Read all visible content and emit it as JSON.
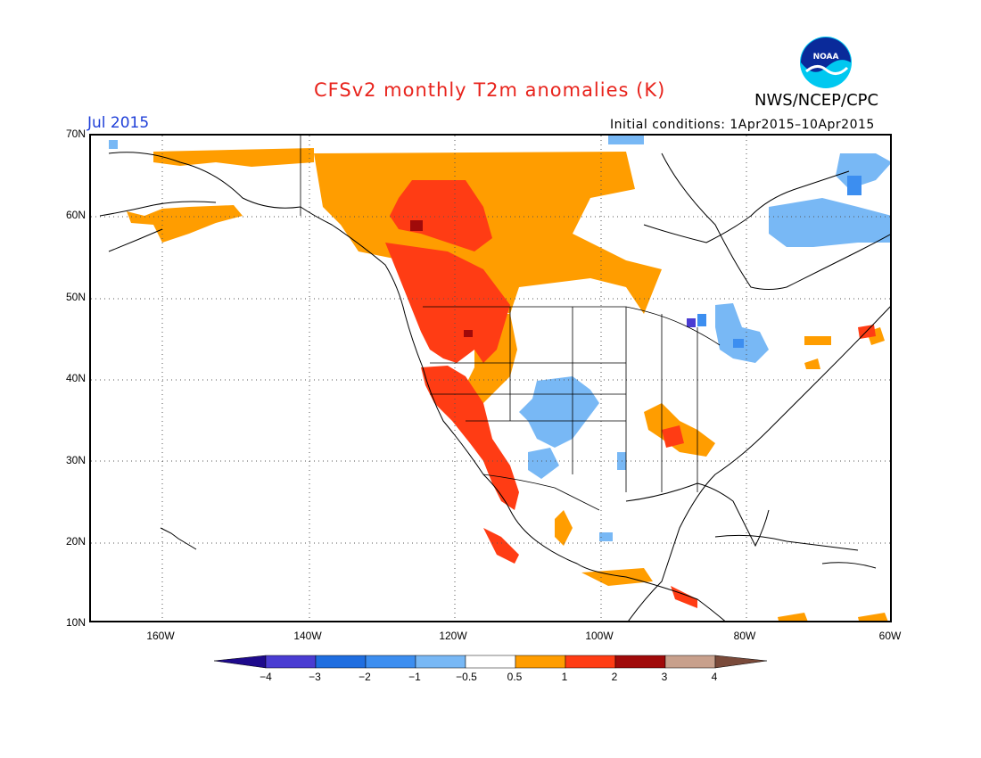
{
  "header": {
    "title": "CFSv2 monthly T2m anomalies (K)",
    "agency": "NWS/NCEP/CPC",
    "month": "Jul 2015",
    "initial_conditions": "Initial conditions: 1Apr2015–10Apr2015",
    "logo_text": "NOAA"
  },
  "axes": {
    "lat_labels": [
      "70N",
      "60N",
      "50N",
      "40N",
      "30N",
      "20N",
      "10N"
    ],
    "lon_labels": [
      "160W",
      "140W",
      "120W",
      "100W",
      "80W",
      "60W"
    ]
  },
  "colorbar": {
    "labels": [
      "−4",
      "−3",
      "−2",
      "−1",
      "−0.5",
      "0.5",
      "1",
      "2",
      "3",
      "4"
    ],
    "colors": [
      "#1e0a8c",
      "#4a3cd2",
      "#1f6ee0",
      "#3c8ef0",
      "#78b8f5",
      "#ffffff",
      "#ff9d00",
      "#ff3c14",
      "#a00a0a",
      "#c8a08c",
      "#7a4a3a"
    ]
  },
  "regions": [
    {
      "name": "northern-canada-warm",
      "level": "0.5-1"
    },
    {
      "name": "western-canada-warm",
      "level": "1-2"
    },
    {
      "name": "pacific-northwest-warm",
      "level": "1-2"
    },
    {
      "name": "california-warm",
      "level": "1-2"
    },
    {
      "name": "great-basin-warm",
      "level": "0.5-1"
    },
    {
      "name": "southern-plains-cool",
      "level": "-1 to -0.5"
    },
    {
      "name": "great-lakes-cool",
      "level": "-1 to -0.5"
    },
    {
      "name": "quebec-cool",
      "level": "-1 to -0.5"
    },
    {
      "name": "gulf-coast-warm",
      "level": "0.5-1"
    },
    {
      "name": "alaska-warm",
      "level": "0.5-1"
    }
  ]
}
